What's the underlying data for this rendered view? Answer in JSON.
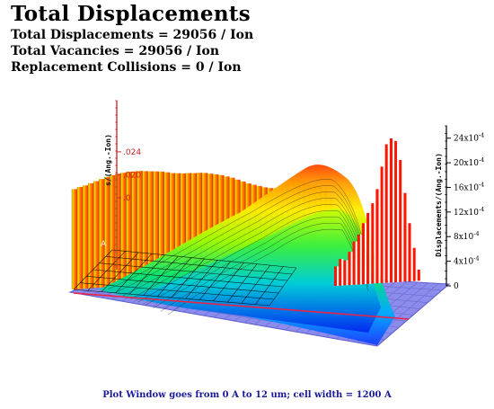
{
  "header": {
    "title": "Total Displacements",
    "line1": "Total Displacements = 29056 / Ion",
    "line2": "Total Vacancies = 29056 / Ion",
    "line3": "Replacement Collisions = 0 / Ion"
  },
  "footer": "Plot Window goes from 0 A to 12 um;  cell width = 1200 A",
  "chart_data": [
    {
      "type": "bar",
      "description": "Depth profile (back wall)",
      "ylabel": "s/(Ang.-Ion)",
      "yticks": [
        ".024",
        ".020",
        ".0"
      ],
      "bins": 48,
      "values": [
        0.0175,
        0.0178,
        0.018,
        0.0183,
        0.0186,
        0.0189,
        0.0192,
        0.0194,
        0.0196,
        0.0197,
        0.0198,
        0.0198,
        0.0198,
        0.0197,
        0.0196,
        0.0195,
        0.0194,
        0.0192,
        0.019,
        0.0189,
        0.0188,
        0.0188,
        0.0187,
        0.0187,
        0.0186,
        0.0184,
        0.0182,
        0.018,
        0.0177,
        0.0174,
        0.017,
        0.0166,
        0.0162,
        0.0159,
        0.0156,
        0.0153,
        0.0151,
        0.015,
        0.0152,
        0.0158,
        0.0163,
        0.0164,
        0.016,
        0.0154,
        0.015,
        0.0146,
        0.014,
        0.013
      ],
      "ylim": [
        0,
        0.026
      ]
    },
    {
      "type": "bar",
      "description": "Lateral profile (right wall)",
      "ylabel": "Displacements/(Ang.-Ion)",
      "yticks": [
        "24x10-4",
        "20x10-4",
        "16x10-4",
        "12x10-4",
        "8x10-4",
        "4x10-4",
        "0"
      ],
      "tick_base": "x10",
      "tick_exp": "-4",
      "tick_mantissas": [
        24,
        20,
        16,
        12,
        8,
        4,
        0
      ],
      "bins": 19,
      "values": [
        3.5,
        4.8,
        4.5,
        6,
        7.8,
        9,
        11,
        12.8,
        14.5,
        17,
        21,
        25,
        26,
        25.5,
        22,
        16,
        10.5,
        6,
        2
      ],
      "ylim": [
        0,
        26
      ]
    },
    {
      "type": "area",
      "description": "3D damage distribution surface",
      "surface_colors": [
        "#0000ff",
        "#00aaff",
        "#00ff66",
        "#aaff00",
        "#ffff00",
        "#ff8800",
        "#ff0000"
      ]
    }
  ],
  "colors": {
    "floor": "#8c8ced",
    "grid": "#6a6ad0",
    "back_bar_low": "#c8f000",
    "back_bar_high": "#ff2200",
    "side_bar": "#ff1500",
    "axis": "#cc3333",
    "footer_text": "#1a1a9a"
  },
  "axis_labels": {
    "floor_left": "A",
    "floor_mark": "0 A"
  }
}
